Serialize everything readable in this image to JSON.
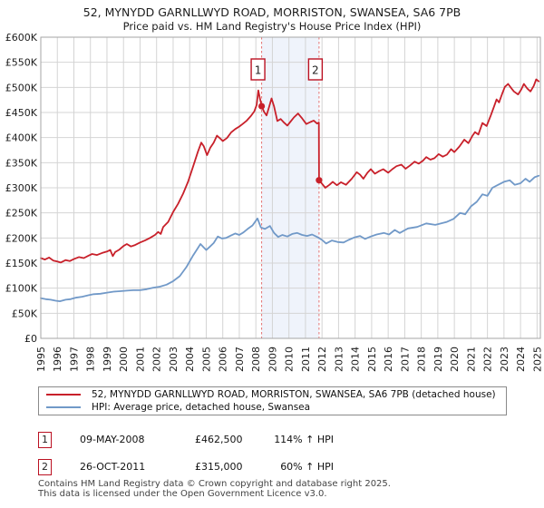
{
  "title": "52, MYNYDD GARNLLWYD ROAD, MORRISTON, SWANSEA, SA6 7PB",
  "subtitle": "Price paid vs. HM Land Registry's House Price Index (HPI)",
  "chart_data": {
    "type": "line",
    "xlabel": "",
    "ylabel": "",
    "xlim": [
      1995,
      2025.2
    ],
    "ylim": [
      0,
      600
    ],
    "x_ticks": [
      1995,
      1996,
      1997,
      1998,
      1999,
      2000,
      2001,
      2002,
      2003,
      2004,
      2005,
      2006,
      2007,
      2008,
      2009,
      2010,
      2011,
      2012,
      2013,
      2014,
      2015,
      2016,
      2017,
      2018,
      2019,
      2020,
      2021,
      2022,
      2023,
      2024,
      2025
    ],
    "y_ticks": [
      {
        "v": 0,
        "label": "£0"
      },
      {
        "v": 50,
        "label": "£50K"
      },
      {
        "v": 100,
        "label": "£100K"
      },
      {
        "v": 150,
        "label": "£150K"
      },
      {
        "v": 200,
        "label": "£200K"
      },
      {
        "v": 250,
        "label": "£250K"
      },
      {
        "v": 300,
        "label": "£300K"
      },
      {
        "v": 350,
        "label": "£350K"
      },
      {
        "v": 400,
        "label": "£400K"
      },
      {
        "v": 450,
        "label": "£450K"
      },
      {
        "v": 500,
        "label": "£500K"
      },
      {
        "v": 550,
        "label": "£550K"
      },
      {
        "v": 600,
        "label": "£600K"
      }
    ],
    "grid": true,
    "legend_position": "bottom",
    "colors": {
      "price_line": "#c8202a",
      "hpi_line": "#7199c8",
      "sale_marker_line": "#e57373",
      "sale_band_fill": "#eff3fb",
      "grid": "#d4d4d4",
      "plot_border": "#a6a6a6",
      "marker_box_border": "#bb1122"
    },
    "series": [
      {
        "name": "52, MYNYDD GARNLLWYD ROAD, MORRISTON, SWANSEA, SA6 7PB (detached house)",
        "key": "price",
        "units": "£K",
        "points": [
          [
            1995.0,
            160
          ],
          [
            1995.25,
            157
          ],
          [
            1995.5,
            161
          ],
          [
            1995.75,
            155
          ],
          [
            1996.0,
            153
          ],
          [
            1996.2,
            151
          ],
          [
            1996.5,
            156
          ],
          [
            1996.75,
            154
          ],
          [
            1997.0,
            158
          ],
          [
            1997.3,
            162
          ],
          [
            1997.6,
            160
          ],
          [
            1997.9,
            165
          ],
          [
            1998.1,
            168
          ],
          [
            1998.4,
            166
          ],
          [
            1998.7,
            170
          ],
          [
            1999.0,
            173
          ],
          [
            1999.2,
            176
          ],
          [
            1999.35,
            164
          ],
          [
            1999.5,
            172
          ],
          [
            1999.75,
            177
          ],
          [
            2000.0,
            184
          ],
          [
            2000.2,
            188
          ],
          [
            2000.45,
            183
          ],
          [
            2000.7,
            186
          ],
          [
            2001.0,
            191
          ],
          [
            2001.3,
            195
          ],
          [
            2001.6,
            200
          ],
          [
            2001.9,
            206
          ],
          [
            2002.1,
            212
          ],
          [
            2002.25,
            208
          ],
          [
            2002.4,
            222
          ],
          [
            2002.7,
            232
          ],
          [
            2003.0,
            252
          ],
          [
            2003.3,
            268
          ],
          [
            2003.6,
            288
          ],
          [
            2003.9,
            312
          ],
          [
            2004.2,
            342
          ],
          [
            2004.5,
            372
          ],
          [
            2004.7,
            390
          ],
          [
            2004.85,
            383
          ],
          [
            2005.05,
            365
          ],
          [
            2005.25,
            380
          ],
          [
            2005.45,
            390
          ],
          [
            2005.65,
            404
          ],
          [
            2005.85,
            398
          ],
          [
            2006.0,
            393
          ],
          [
            2006.25,
            399
          ],
          [
            2006.5,
            410
          ],
          [
            2006.75,
            417
          ],
          [
            2007.0,
            422
          ],
          [
            2007.2,
            427
          ],
          [
            2007.45,
            434
          ],
          [
            2007.7,
            443
          ],
          [
            2007.9,
            452
          ],
          [
            2008.05,
            465
          ],
          [
            2008.15,
            494
          ],
          [
            2008.25,
            478
          ],
          [
            2008.35,
            462.5
          ],
          [
            2008.5,
            451
          ],
          [
            2008.65,
            444
          ],
          [
            2008.8,
            461
          ],
          [
            2008.95,
            478
          ],
          [
            2009.1,
            462
          ],
          [
            2009.3,
            433
          ],
          [
            2009.5,
            437
          ],
          [
            2009.7,
            430
          ],
          [
            2009.9,
            424
          ],
          [
            2010.1,
            432
          ],
          [
            2010.3,
            440
          ],
          [
            2010.55,
            448
          ],
          [
            2010.8,
            438
          ],
          [
            2011.05,
            427
          ],
          [
            2011.3,
            431
          ],
          [
            2011.5,
            434
          ],
          [
            2011.7,
            428
          ],
          [
            2011.81,
            430
          ],
          [
            2011.82,
            315
          ],
          [
            2012.0,
            308
          ],
          [
            2012.2,
            300
          ],
          [
            2012.45,
            306
          ],
          [
            2012.65,
            312
          ],
          [
            2012.9,
            305
          ],
          [
            2013.15,
            311
          ],
          [
            2013.45,
            306
          ],
          [
            2013.8,
            318
          ],
          [
            2014.1,
            331
          ],
          [
            2014.3,
            326
          ],
          [
            2014.5,
            318
          ],
          [
            2014.75,
            330
          ],
          [
            2014.95,
            337
          ],
          [
            2015.2,
            328
          ],
          [
            2015.45,
            333
          ],
          [
            2015.7,
            337
          ],
          [
            2016.0,
            330
          ],
          [
            2016.25,
            337
          ],
          [
            2016.5,
            343
          ],
          [
            2016.8,
            346
          ],
          [
            2017.05,
            338
          ],
          [
            2017.3,
            344
          ],
          [
            2017.6,
            352
          ],
          [
            2017.85,
            348
          ],
          [
            2018.1,
            354
          ],
          [
            2018.3,
            361
          ],
          [
            2018.55,
            356
          ],
          [
            2018.8,
            359
          ],
          [
            2019.05,
            367
          ],
          [
            2019.3,
            362
          ],
          [
            2019.55,
            366
          ],
          [
            2019.8,
            377
          ],
          [
            2020.0,
            371
          ],
          [
            2020.3,
            382
          ],
          [
            2020.6,
            396
          ],
          [
            2020.85,
            389
          ],
          [
            2021.1,
            404
          ],
          [
            2021.25,
            411
          ],
          [
            2021.45,
            406
          ],
          [
            2021.7,
            429
          ],
          [
            2021.95,
            423
          ],
          [
            2022.2,
            444
          ],
          [
            2022.4,
            462
          ],
          [
            2022.55,
            476
          ],
          [
            2022.7,
            470
          ],
          [
            2022.9,
            488
          ],
          [
            2023.05,
            501
          ],
          [
            2023.25,
            507
          ],
          [
            2023.45,
            498
          ],
          [
            2023.6,
            492
          ],
          [
            2023.85,
            486
          ],
          [
            2024.05,
            496
          ],
          [
            2024.2,
            507
          ],
          [
            2024.4,
            498
          ],
          [
            2024.6,
            492
          ],
          [
            2024.8,
            503
          ],
          [
            2024.95,
            516
          ],
          [
            2025.1,
            512
          ]
        ]
      },
      {
        "name": "HPI: Average price, detached house, Swansea",
        "key": "hpi",
        "units": "£K",
        "points": [
          [
            1995.0,
            80
          ],
          [
            1995.3,
            78
          ],
          [
            1995.6,
            77
          ],
          [
            1995.9,
            75
          ],
          [
            1996.15,
            74
          ],
          [
            1996.5,
            77
          ],
          [
            1996.8,
            78
          ],
          [
            1997.1,
            81
          ],
          [
            1997.5,
            83
          ],
          [
            1997.9,
            86
          ],
          [
            1998.2,
            88
          ],
          [
            1998.6,
            89
          ],
          [
            1999.0,
            91
          ],
          [
            1999.4,
            93
          ],
          [
            1999.8,
            94
          ],
          [
            2000.2,
            95
          ],
          [
            2000.6,
            96
          ],
          [
            2001.0,
            96
          ],
          [
            2001.4,
            98
          ],
          [
            2001.8,
            101
          ],
          [
            2002.2,
            103
          ],
          [
            2002.6,
            107
          ],
          [
            2003.0,
            114
          ],
          [
            2003.4,
            124
          ],
          [
            2003.8,
            142
          ],
          [
            2004.2,
            165
          ],
          [
            2004.5,
            180
          ],
          [
            2004.65,
            188
          ],
          [
            2004.85,
            181
          ],
          [
            2005.0,
            176
          ],
          [
            2005.2,
            182
          ],
          [
            2005.45,
            190
          ],
          [
            2005.7,
            203
          ],
          [
            2005.95,
            199
          ],
          [
            2006.2,
            200
          ],
          [
            2006.5,
            205
          ],
          [
            2006.75,
            209
          ],
          [
            2007.0,
            206
          ],
          [
            2007.25,
            211
          ],
          [
            2007.5,
            218
          ],
          [
            2007.8,
            225
          ],
          [
            2008.1,
            239
          ],
          [
            2008.3,
            221
          ],
          [
            2008.55,
            218
          ],
          [
            2008.85,
            224
          ],
          [
            2009.1,
            210
          ],
          [
            2009.35,
            202
          ],
          [
            2009.6,
            206
          ],
          [
            2009.9,
            203
          ],
          [
            2010.2,
            208
          ],
          [
            2010.5,
            210
          ],
          [
            2010.8,
            206
          ],
          [
            2011.1,
            204
          ],
          [
            2011.4,
            207
          ],
          [
            2011.7,
            202
          ],
          [
            2012.0,
            196
          ],
          [
            2012.25,
            189
          ],
          [
            2012.6,
            195
          ],
          [
            2012.95,
            192
          ],
          [
            2013.3,
            191
          ],
          [
            2013.6,
            196
          ],
          [
            2013.95,
            201
          ],
          [
            2014.3,
            204
          ],
          [
            2014.6,
            198
          ],
          [
            2014.95,
            203
          ],
          [
            2015.3,
            207
          ],
          [
            2015.75,
            210
          ],
          [
            2016.05,
            207
          ],
          [
            2016.4,
            216
          ],
          [
            2016.7,
            210
          ],
          [
            2017.2,
            219
          ],
          [
            2017.75,
            222
          ],
          [
            2018.3,
            229
          ],
          [
            2018.85,
            226
          ],
          [
            2019.2,
            229
          ],
          [
            2019.55,
            232
          ],
          [
            2019.95,
            238
          ],
          [
            2020.35,
            250
          ],
          [
            2020.65,
            247
          ],
          [
            2021.0,
            263
          ],
          [
            2021.35,
            272
          ],
          [
            2021.7,
            287
          ],
          [
            2022.0,
            284
          ],
          [
            2022.3,
            300
          ],
          [
            2022.65,
            306
          ],
          [
            2023.0,
            312
          ],
          [
            2023.35,
            315
          ],
          [
            2023.65,
            306
          ],
          [
            2024.0,
            309
          ],
          [
            2024.3,
            318
          ],
          [
            2024.55,
            312
          ],
          [
            2024.85,
            321
          ],
          [
            2025.1,
            324
          ]
        ]
      }
    ],
    "sales": [
      {
        "n": "1",
        "year": 2008.35,
        "price_k": 462.5
      },
      {
        "n": "2",
        "year": 2011.82,
        "price_k": 315
      }
    ]
  },
  "legend": {
    "items": [
      {
        "label": "52, MYNYDD GARNLLWYD ROAD, MORRISTON, SWANSEA, SA6 7PB (detached house)",
        "color": "#c8202a"
      },
      {
        "label": "HPI: Average price, detached house, Swansea",
        "color": "#7199c8"
      }
    ]
  },
  "transactions": [
    {
      "marker": "1",
      "date": "09-MAY-2008",
      "price": "£462,500",
      "hpi": "114% ↑ HPI"
    },
    {
      "marker": "2",
      "date": "26-OCT-2011",
      "price": "£315,000",
      "hpi": "60% ↑ HPI"
    }
  ],
  "footer": {
    "line1": "Contains HM Land Registry data © Crown copyright and database right 2025.",
    "line2": "This data is licensed under the Open Government Licence v3.0."
  }
}
